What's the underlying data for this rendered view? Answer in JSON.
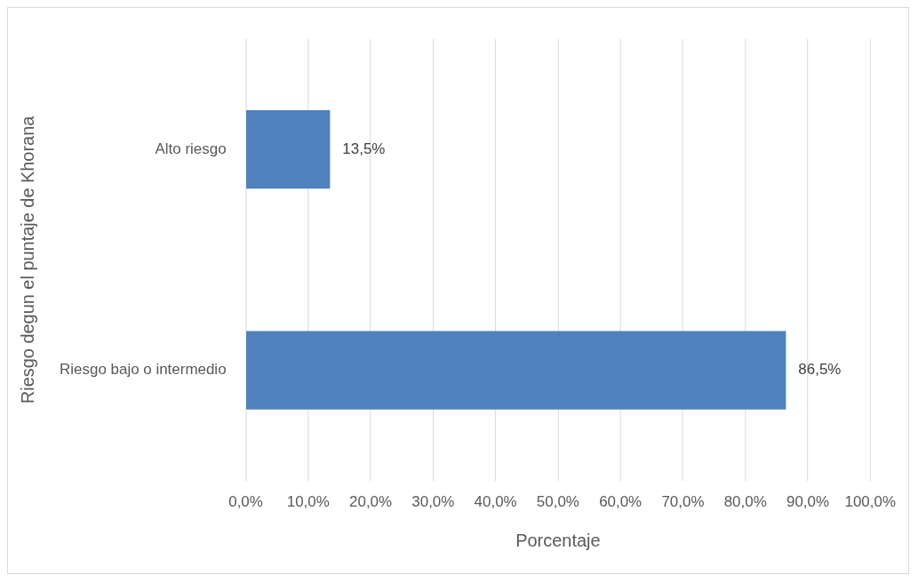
{
  "chart_data": {
    "type": "bar",
    "orientation": "horizontal",
    "xlabel": "Porcentaje",
    "ylabel": "Riesgo degun el puntaje de Khorana",
    "categories": [
      "Alto riesgo",
      "Riesgo bajo o intermedio"
    ],
    "values": [
      13.5,
      86.5
    ],
    "color": "#4f81bd",
    "value_labels": [
      "13,5%",
      "86,5%"
    ],
    "xlim": [
      0,
      100
    ],
    "xticks": [
      {
        "value": 0,
        "label": "0,0%"
      },
      {
        "value": 10,
        "label": "10,0%"
      },
      {
        "value": 20,
        "label": "20,0%"
      },
      {
        "value": 30,
        "label": "30,0%"
      },
      {
        "value": 40,
        "label": "40,0%"
      },
      {
        "value": 50,
        "label": "50,0%"
      },
      {
        "value": 60,
        "label": "60,0%"
      },
      {
        "value": 70,
        "label": "70,0%"
      },
      {
        "value": 80,
        "label": "80,0%"
      },
      {
        "value": 90,
        "label": "90,0%"
      },
      {
        "value": 100,
        "label": "100,0%"
      }
    ],
    "grid": "x",
    "legend": false
  }
}
